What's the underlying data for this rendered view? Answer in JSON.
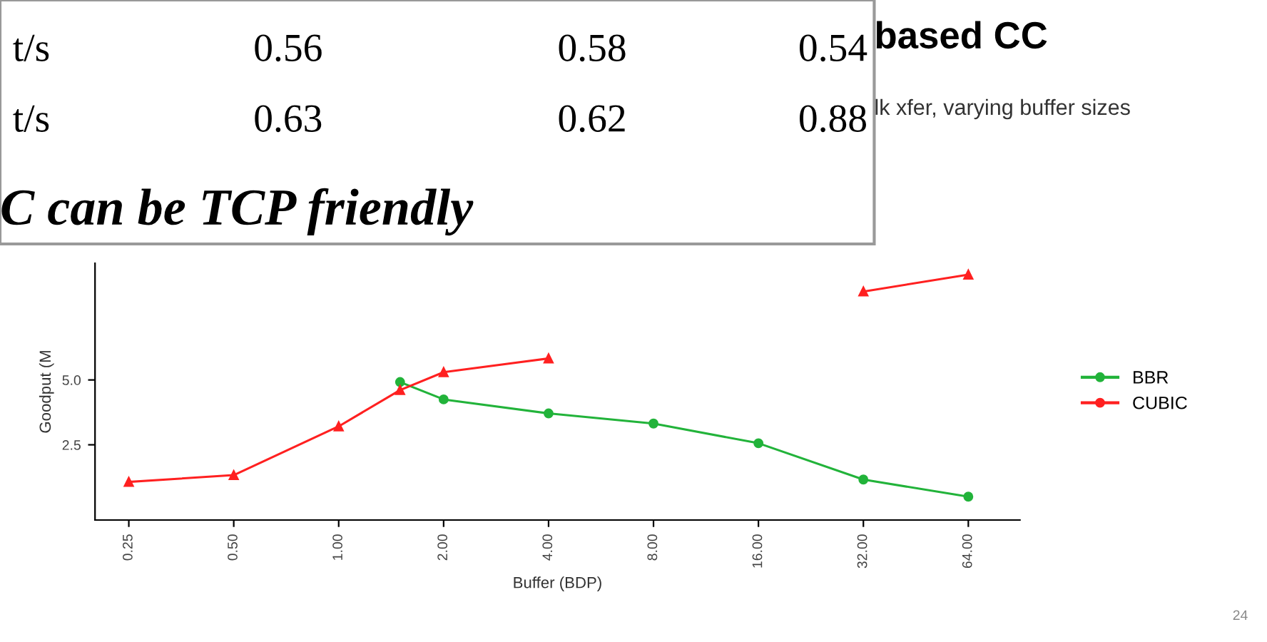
{
  "chart_data": {
    "type": "line",
    "title": "based CC",
    "subtitle": "lk xfer, varying buffer sizes",
    "xlabel": "Buffer (BDP)",
    "ylabel": "Goodput (M",
    "x": [
      0.25,
      0.5,
      1,
      1.5,
      2,
      4,
      8,
      16,
      32,
      64
    ],
    "series": [
      {
        "name": "BBR",
        "color": "#22b33a",
        "marker": "circle",
        "values": [
          null,
          null,
          null,
          4.92,
          4.25,
          3.71,
          3.32,
          2.56,
          1.16,
          0.5
        ]
      },
      {
        "name": "CUBIC",
        "color": "#ff2020",
        "marker": "triangle",
        "values": [
          1.07,
          1.33,
          3.21,
          4.61,
          5.3,
          5.83,
          null,
          null,
          8.41,
          9.06
        ]
      }
    ],
    "log": "x",
    "xlim": [
      0.2,
      90
    ],
    "xticks": [
      {
        "value": 0.25,
        "label": "0.25"
      },
      {
        "value": 0.5,
        "label": "0.50"
      },
      {
        "value": 1,
        "label": "1.00"
      },
      {
        "value": 2,
        "label": "2.00"
      },
      {
        "value": 4,
        "label": "4.00"
      },
      {
        "value": 8,
        "label": "8.00"
      },
      {
        "value": 16,
        "label": "16.00"
      },
      {
        "value": 32,
        "label": "32.00"
      },
      {
        "value": 64,
        "label": "64.00"
      }
    ],
    "ylim": [
      -0.4,
      9.5
    ],
    "yticks": [
      {
        "value": 2.5,
        "label": "2.5"
      },
      {
        "value": 5,
        "label": "5.0"
      }
    ],
    "grid": false,
    "legend": "right",
    "line_style": "solid",
    "annotations": [
      "t/s",
      "0.56",
      "0.58",
      "0.54",
      "t/s",
      "0.63",
      "0.62",
      "0.88",
      "C can be TCP friendly",
      "24"
    ]
  }
}
